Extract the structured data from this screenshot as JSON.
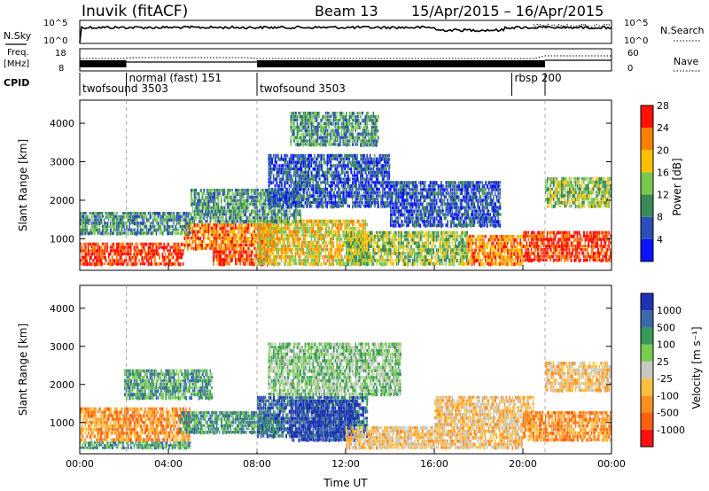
{
  "header": {
    "station": "Inuvik (fitACF)",
    "beam": "Beam 13",
    "dates": "15/Apr/2015 – 16/Apr/2015"
  },
  "left_labels": {
    "nsky": "N.Sky",
    "freq_top": "Freq.",
    "freq_unit": "[MHz]",
    "cpid": "CPID"
  },
  "right_labels": {
    "nsearch": "N.Search",
    "nave": "Nave"
  },
  "strip_ticks": {
    "noise_left": [
      "10^5",
      "10^0"
    ],
    "noise_right": [
      "10^5",
      "10^0"
    ],
    "freq_left": [
      "18",
      "8"
    ],
    "nave_right": [
      "60",
      "0"
    ]
  },
  "cpid_segments": [
    {
      "label": "twofsound 3503",
      "start_h": 0
    },
    {
      "label": "normal (fast) 151",
      "start_h": 2.1
    },
    {
      "label": "twofsound 3503",
      "start_h": 8.0
    },
    {
      "label": "rbsp 200",
      "start_h": 19.5
    },
    {
      "label": "",
      "start_h": 21.0
    }
  ],
  "power_colorbar": {
    "label": "Power [dB]",
    "ticks": [
      "4",
      "8",
      "12",
      "16",
      "20",
      "24",
      "28"
    ],
    "colors": [
      "#0a14ff",
      "#2a4fb8",
      "#3a8a5a",
      "#78c850",
      "#ffc000",
      "#ff8000",
      "#ff1000"
    ]
  },
  "velocity_colorbar": {
    "label": "Velocity [m s⁻¹]",
    "ticks": [
      "1000",
      "500",
      "100",
      "25",
      "-25",
      "-100",
      "-500",
      "-1000"
    ],
    "colors": [
      "#1e32b4",
      "#3a6aaa",
      "#3a9a5a",
      "#78cc50",
      "#c8c8c0",
      "#ffc040",
      "#ff9020",
      "#ff6010",
      "#ff1010"
    ]
  },
  "chart_data": [
    {
      "type": "heatmap",
      "name_printed": "",
      "quantity": "Power [dB]",
      "x": {
        "label": "",
        "range_h": [
          0,
          24
        ],
        "ticks": [
          "00:00",
          "04:00",
          "08:00",
          "12:00",
          "16:00",
          "20:00",
          "00:00"
        ]
      },
      "y": {
        "label": "Slant Range [km]",
        "range": [
          180,
          4600
        ],
        "ticks": [
          1000,
          2000,
          3000,
          4000
        ]
      },
      "regions": [
        {
          "t0": 0.0,
          "t1": 4.7,
          "r0": 300,
          "r1": 900,
          "level": 28
        },
        {
          "t0": 4.7,
          "t1": 9.0,
          "r0": 700,
          "r1": 1400,
          "level": 24
        },
        {
          "t0": 6.0,
          "t1": 8.5,
          "r0": 300,
          "r1": 700,
          "level": 28
        },
        {
          "t0": 8.0,
          "t1": 13.0,
          "r0": 300,
          "r1": 1500,
          "level": 20
        },
        {
          "t0": 12.0,
          "t1": 17.5,
          "r0": 300,
          "r1": 1200,
          "level": 16
        },
        {
          "t0": 17.5,
          "t1": 20.0,
          "r0": 300,
          "r1": 1100,
          "level": 24
        },
        {
          "t0": 20.0,
          "t1": 24.0,
          "r0": 400,
          "r1": 1200,
          "level": 28
        },
        {
          "t0": 0.0,
          "t1": 5.0,
          "r0": 1100,
          "r1": 1700,
          "level": 12
        },
        {
          "t0": 5.0,
          "t1": 10.0,
          "r0": 1400,
          "r1": 2300,
          "level": 12
        },
        {
          "t0": 8.5,
          "t1": 14.0,
          "r0": 1800,
          "r1": 3200,
          "level": 8
        },
        {
          "t0": 14.0,
          "t1": 19.0,
          "r0": 1300,
          "r1": 2500,
          "level": 8
        },
        {
          "t0": 21.0,
          "t1": 24.0,
          "r0": 1800,
          "r1": 2600,
          "level": 16
        },
        {
          "t0": 9.5,
          "t1": 13.5,
          "r0": 3400,
          "r1": 4300,
          "level": 12
        }
      ]
    },
    {
      "type": "heatmap",
      "name_printed": "",
      "quantity": "Velocity [m s-1]",
      "x": {
        "label": "Time UT",
        "range_h": [
          0,
          24
        ],
        "ticks": [
          "00:00",
          "04:00",
          "08:00",
          "12:00",
          "16:00",
          "20:00",
          "00:00"
        ]
      },
      "y": {
        "label": "Slant Range [km]",
        "range": [
          180,
          4600
        ],
        "ticks": [
          1000,
          2000,
          3000,
          4000
        ]
      },
      "regions": [
        {
          "t0": 0.0,
          "t1": 5.0,
          "r0": 500,
          "r1": 1400,
          "level": -500
        },
        {
          "t0": 0.0,
          "t1": 5.0,
          "r0": 300,
          "r1": 500,
          "level": 100
        },
        {
          "t0": 4.5,
          "t1": 9.0,
          "r0": 700,
          "r1": 1300,
          "level": 100
        },
        {
          "t0": 8.0,
          "t1": 13.0,
          "r0": 600,
          "r1": 1700,
          "level": 500
        },
        {
          "t0": 9.5,
          "t1": 12.5,
          "r0": 500,
          "r1": 1600,
          "level": 1000
        },
        {
          "t0": 8.5,
          "t1": 14.5,
          "r0": 1700,
          "r1": 3100,
          "level": 25
        },
        {
          "t0": 12.0,
          "t1": 20.0,
          "r0": 300,
          "r1": 900,
          "level": -100
        },
        {
          "t0": 16.0,
          "t1": 20.5,
          "r0": 900,
          "r1": 1700,
          "level": -100
        },
        {
          "t0": 20.0,
          "t1": 24.0,
          "r0": 500,
          "r1": 1300,
          "level": -500
        },
        {
          "t0": 21.0,
          "t1": 24.0,
          "r0": 1800,
          "r1": 2600,
          "level": -100
        },
        {
          "t0": 2.0,
          "t1": 6.0,
          "r0": 1600,
          "r1": 2400,
          "level": 100
        }
      ]
    }
  ]
}
